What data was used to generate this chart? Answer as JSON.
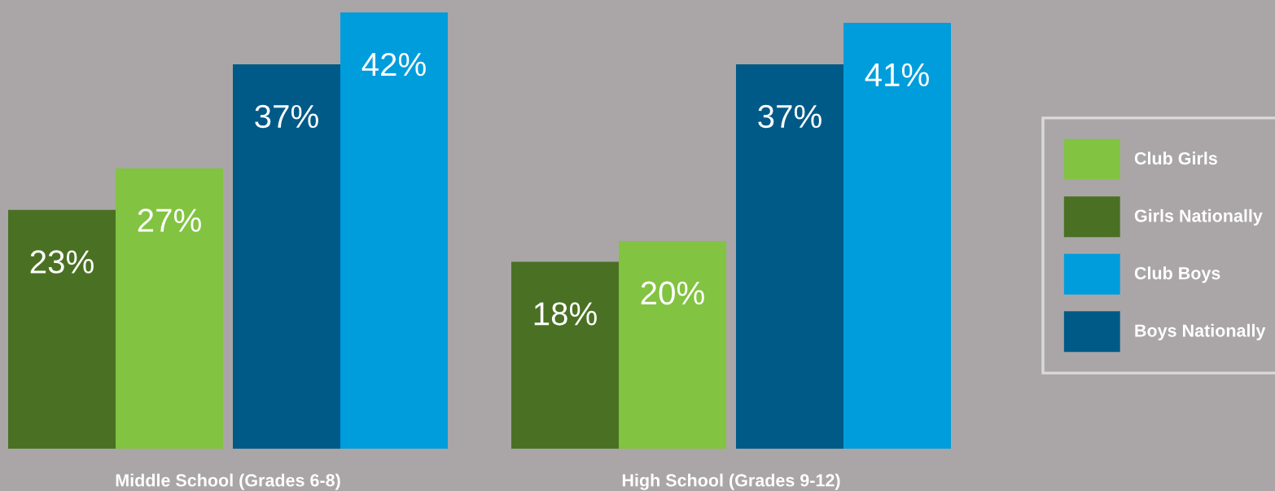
{
  "chart_data": {
    "type": "bar",
    "categories": [
      "Middle School (Grades 6-8)",
      "High School (Grades 9-12)"
    ],
    "series": [
      {
        "name": "Girls Nationally",
        "color": "#4a7123",
        "values": [
          23,
          18
        ],
        "value_labels": [
          "23%",
          "18%"
        ]
      },
      {
        "name": "Club Girls",
        "color": "#82c341",
        "values": [
          27,
          20
        ],
        "value_labels": [
          "27%",
          "20%"
        ]
      },
      {
        "name": "Boys Nationally",
        "color": "#005a87",
        "values": [
          37,
          37
        ],
        "value_labels": [
          "37%",
          "37%"
        ]
      },
      {
        "name": "Club Boys",
        "color": "#009ddc",
        "values": [
          42,
          41
        ],
        "value_labels": [
          "42%",
          "41%"
        ]
      }
    ],
    "ylim": [
      0,
      43.2
    ],
    "tick_labels": "x",
    "grid": false,
    "legend": "right"
  }
}
